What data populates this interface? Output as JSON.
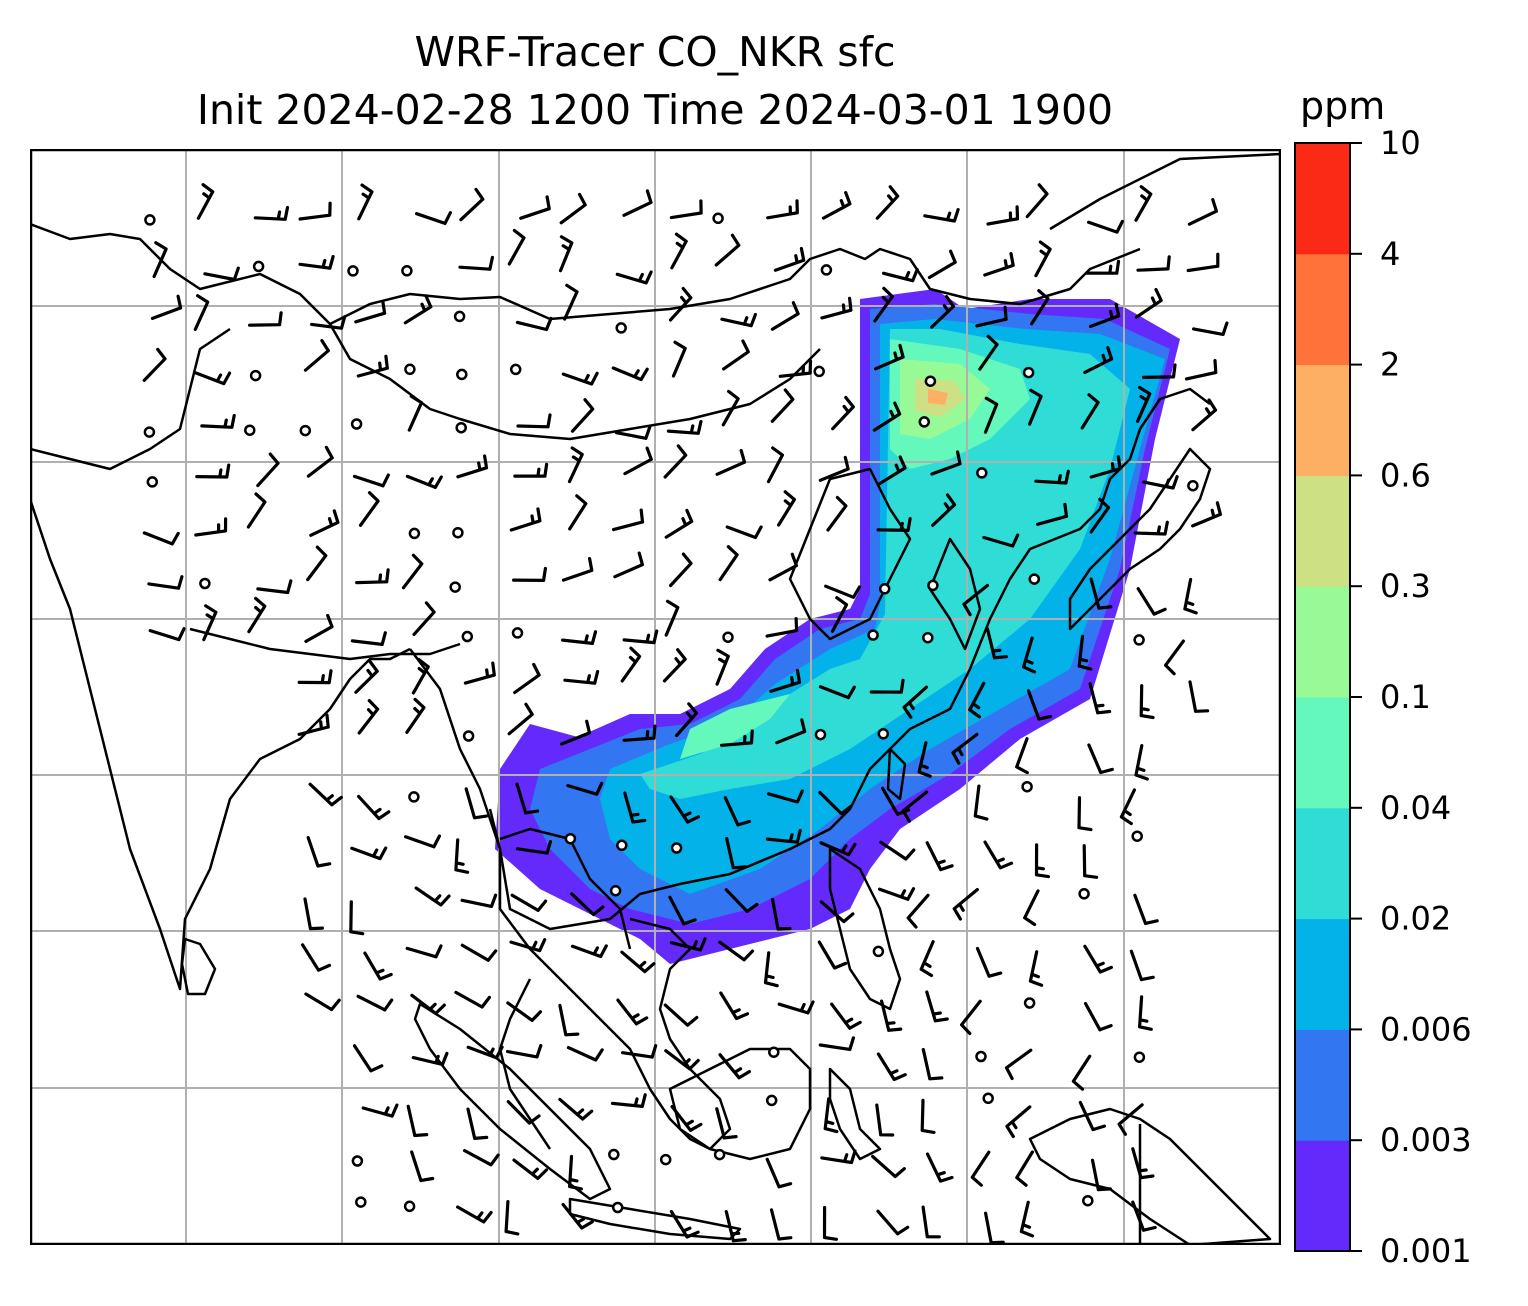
{
  "title": {
    "line1": "WRF-Tracer CO_NKR sfc",
    "line2": "Init 2024-02-28 1200 Time 2024-03-01 1900"
  },
  "colorbar": {
    "unit": "ppm",
    "levels": [
      "0.001",
      "0.003",
      "0.006",
      "0.02",
      "0.04",
      "0.1",
      "0.3",
      "0.6",
      "2",
      "4",
      "10"
    ],
    "colors": [
      "#6429fb",
      "#3376f2",
      "#04b2ea",
      "#30dcd6",
      "#65f8bc",
      "#97fa97",
      "#cde084",
      "#fdb063",
      "#ff7239",
      "#fb2a17"
    ]
  },
  "map": {
    "projection": "lat-lon",
    "gridlines": true,
    "features": [
      "coastlines",
      "country-borders",
      "co-tracer-concentration",
      "wind-barbs"
    ]
  }
}
